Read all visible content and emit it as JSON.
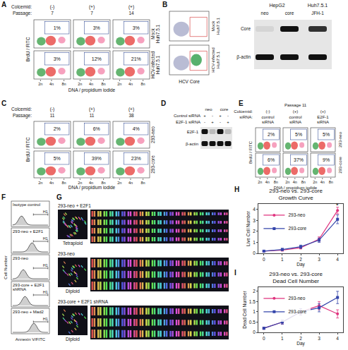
{
  "panels": {
    "A": {
      "letter": "A",
      "header_labels": [
        "Colcemid:",
        "Passage:"
      ],
      "columns": [
        [
          "(-)",
          "7"
        ],
        [
          "(+)",
          "7"
        ],
        [
          "(+)",
          "14"
        ]
      ],
      "rows": [
        {
          "label": "Mock Huh7.5.1",
          "percents": [
            "1%",
            "3%",
            "3%"
          ]
        },
        {
          "label": "HCV-infected Huh7.5.1",
          "percents": [
            "3%",
            "12%",
            "21%"
          ]
        }
      ],
      "y_label": "BrdU / FITC",
      "x_label": "DNA / propidium iodide",
      "ploidy": [
        "2n",
        "4n",
        "8n"
      ]
    },
    "B": {
      "letter": "B",
      "rows": [
        "Mock Huh7.5.1",
        "HCV-infected Huh7.5.1"
      ],
      "x_label": "HCV Core",
      "blot": {
        "groups": [
          {
            "label": "HepG2",
            "lanes": [
              "neo",
              "core"
            ]
          },
          {
            "label": "Huh7.5.1",
            "lanes": [
              "JFH-1"
            ]
          }
        ],
        "bands": [
          "Core",
          "β-actin"
        ]
      }
    },
    "C": {
      "letter": "C",
      "header_labels": [
        "Colcemid:",
        "Passage:"
      ],
      "columns": [
        [
          "(-)",
          "11"
        ],
        [
          "(+)",
          "11"
        ],
        [
          "(+)",
          "38"
        ]
      ],
      "rows": [
        {
          "label": "293-neo",
          "percents": [
            "2%",
            "6%",
            "4%"
          ]
        },
        {
          "label": "293-core",
          "percents": [
            "5%",
            "39%",
            "23%"
          ]
        }
      ],
      "y_label": "BrdU / FITC",
      "x_label": "DNA / propidium iodide",
      "ploidy": [
        "2n",
        "4n",
        "8n"
      ]
    },
    "D": {
      "letter": "D",
      "groups": [
        "neo",
        "core"
      ],
      "treatments": [
        {
          "label": "Control siRNA",
          "signs": [
            "+",
            "-",
            "+",
            "-"
          ]
        },
        {
          "label": "E2F-1 siRNA",
          "signs": [
            "-",
            "+",
            "-",
            "+"
          ]
        }
      ],
      "bands": [
        "E2F-1",
        "β-actin"
      ]
    },
    "E": {
      "letter": "E",
      "title": "Passage 11",
      "header_labels": [
        "Colcemid:",
        "siRNA:"
      ],
      "columns": [
        [
          "(-)",
          "control siRNA"
        ],
        [
          "(+)",
          "control siRNA"
        ],
        [
          "(+)",
          "E2F-1 siRNA"
        ]
      ],
      "rows": [
        {
          "label": "293-neo",
          "percents": [
            "2%",
            "5%",
            "5%"
          ]
        },
        {
          "label": "293-core",
          "percents": [
            "6%",
            "37%",
            "9%"
          ]
        }
      ],
      "y_label": "BrdU / FITC",
      "x_label": "DNA / propidium iodide",
      "ploidy": [
        "2n",
        "4n",
        "8n"
      ]
    },
    "F": {
      "letter": "F",
      "histograms": [
        "Isotype control",
        "293-neo + E2F1",
        "293-neo",
        "293-core + E2F1 shRNA",
        "293-neo + Mad2"
      ],
      "gate": "H1",
      "x_label": "Annexin V/FITC",
      "y_label": "Cell Number"
    },
    "G": {
      "letter": "G",
      "karyotypes": [
        {
          "label": "293-neo + E2F1",
          "status": "Tetraploid"
        },
        {
          "label": "293-neo",
          "status": "Diploid"
        },
        {
          "label": "293-core + E2F1 shRNA",
          "status": "Diploid"
        }
      ]
    }
  },
  "chart_data": [
    {
      "type": "line",
      "letter": "H",
      "title": "293-neo vs. 293-core Growth Curve",
      "x_label": "Day",
      "y_label": "Live Cell Number",
      "x": [
        0,
        1,
        2,
        3,
        4
      ],
      "xlim": [
        -0.3,
        4.3
      ],
      "xticks": [
        0,
        1,
        2,
        3,
        4
      ],
      "ylim": [
        0,
        4.5
      ],
      "yticks": [
        0,
        1,
        2,
        3,
        4
      ],
      "grid": false,
      "legend": "top-left",
      "series": [
        {
          "name": "293-neo",
          "color": "#e0337e",
          "marker": "circle",
          "values": [
            0.2,
            0.3,
            0.5,
            1.3,
            3.9
          ],
          "errors": [
            0.05,
            0.1,
            0.1,
            0.2,
            0.3
          ]
        },
        {
          "name": "293-core",
          "color": "#3344aa",
          "marker": "square",
          "values": [
            0.2,
            0.35,
            0.6,
            1.2,
            3.1
          ],
          "errors": [
            0.05,
            0.1,
            0.15,
            0.2,
            0.4
          ]
        }
      ],
      "annotations": [
        {
          "text": "*",
          "x": 4,
          "y": 4.35
        }
      ]
    },
    {
      "type": "line",
      "letter": "I",
      "title": "293-neo vs. 293-core Dead Cell Number",
      "x_label": "Day",
      "y_label": "Dead Cell Number",
      "x": [
        0,
        1,
        2,
        3,
        4
      ],
      "xlim": [
        -0.3,
        4.3
      ],
      "xticks": [
        0,
        1,
        2,
        3,
        4
      ],
      "ylim": [
        0,
        2.2
      ],
      "yticks": [
        0,
        0.5,
        1,
        1.5,
        2
      ],
      "grid": false,
      "legend": "top-left",
      "series": [
        {
          "name": "293-neo",
          "color": "#e0337e",
          "marker": "circle",
          "values": [
            0.2,
            0.5,
            1.0,
            1.3,
            0.9
          ],
          "errors": [
            0.05,
            0.1,
            0.15,
            0.2,
            0.2
          ]
        },
        {
          "name": "293-core",
          "color": "#3344aa",
          "marker": "square",
          "values": [
            0.2,
            0.5,
            1.0,
            1.2,
            1.7
          ],
          "errors": [
            0.05,
            0.1,
            0.15,
            0.2,
            0.3
          ]
        }
      ],
      "annotations": []
    }
  ]
}
